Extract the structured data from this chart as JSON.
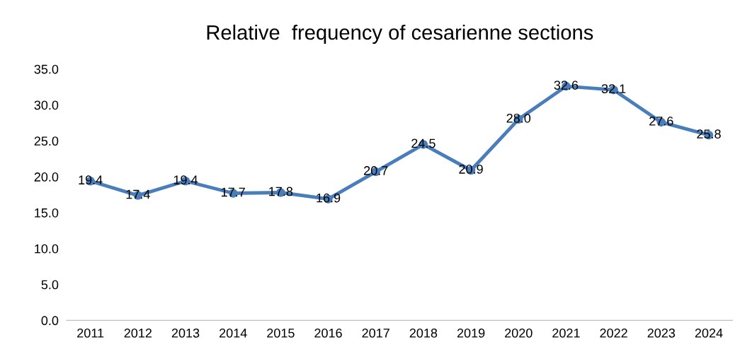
{
  "chart_data": {
    "type": "line",
    "title": "Relative  frequency of cesarienne sections",
    "categories": [
      "2011",
      "2012",
      "2013",
      "2014",
      "2015",
      "2016",
      "2017",
      "2018",
      "2019",
      "2020",
      "2021",
      "2022",
      "2023",
      "2024"
    ],
    "values": [
      19.4,
      17.4,
      19.4,
      17.7,
      17.8,
      16.9,
      20.7,
      24.5,
      20.9,
      28.0,
      32.6,
      32.1,
      27.6,
      25.8
    ],
    "value_labels": [
      "19.4",
      "17.4",
      "19.4",
      "17.7",
      "17.8",
      "16.9",
      "20.7",
      "24.5",
      "20.9",
      "28.0",
      "32.6",
      "32.1",
      "27.6",
      "25.8"
    ],
    "color": "#4a7ebb",
    "marker": "circle",
    "line_style": "solid",
    "grid": false,
    "legend": false,
    "ylim": [
      0,
      35
    ],
    "yticks": [
      {
        "value": 0,
        "label": "0.0"
      },
      {
        "value": 5,
        "label": "5.0"
      },
      {
        "value": 10,
        "label": "10.0"
      },
      {
        "value": 15,
        "label": "15.0"
      },
      {
        "value": 20,
        "label": "20.0"
      },
      {
        "value": 25,
        "label": "25.0"
      },
      {
        "value": 30,
        "label": "30.0"
      },
      {
        "value": 35,
        "label": "35.0"
      }
    ]
  }
}
